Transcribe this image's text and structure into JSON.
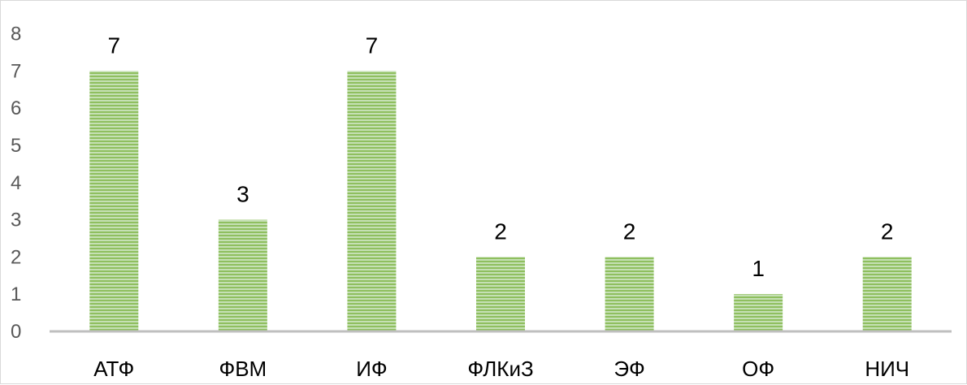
{
  "chart_data": {
    "type": "bar",
    "title": "",
    "xlabel": "",
    "ylabel": "",
    "categories": [
      "АТФ",
      "ФВМ",
      "ИФ",
      "ФЛКиЗ",
      "ЭФ",
      "ОФ",
      "НИЧ"
    ],
    "values": [
      7,
      3,
      7,
      2,
      2,
      1,
      2
    ],
    "data_labels": [
      "7",
      "3",
      "7",
      "2",
      "2",
      "1",
      "2"
    ],
    "yticks": [
      "0",
      "1",
      "2",
      "3",
      "4",
      "5",
      "6",
      "7",
      "8"
    ],
    "ylim": [
      0,
      8
    ],
    "grid": false,
    "legend": "none",
    "bar_color": "#a9d18e",
    "bar_stripe_color": "#70ad47",
    "axis_color": "#bfbfbf"
  }
}
